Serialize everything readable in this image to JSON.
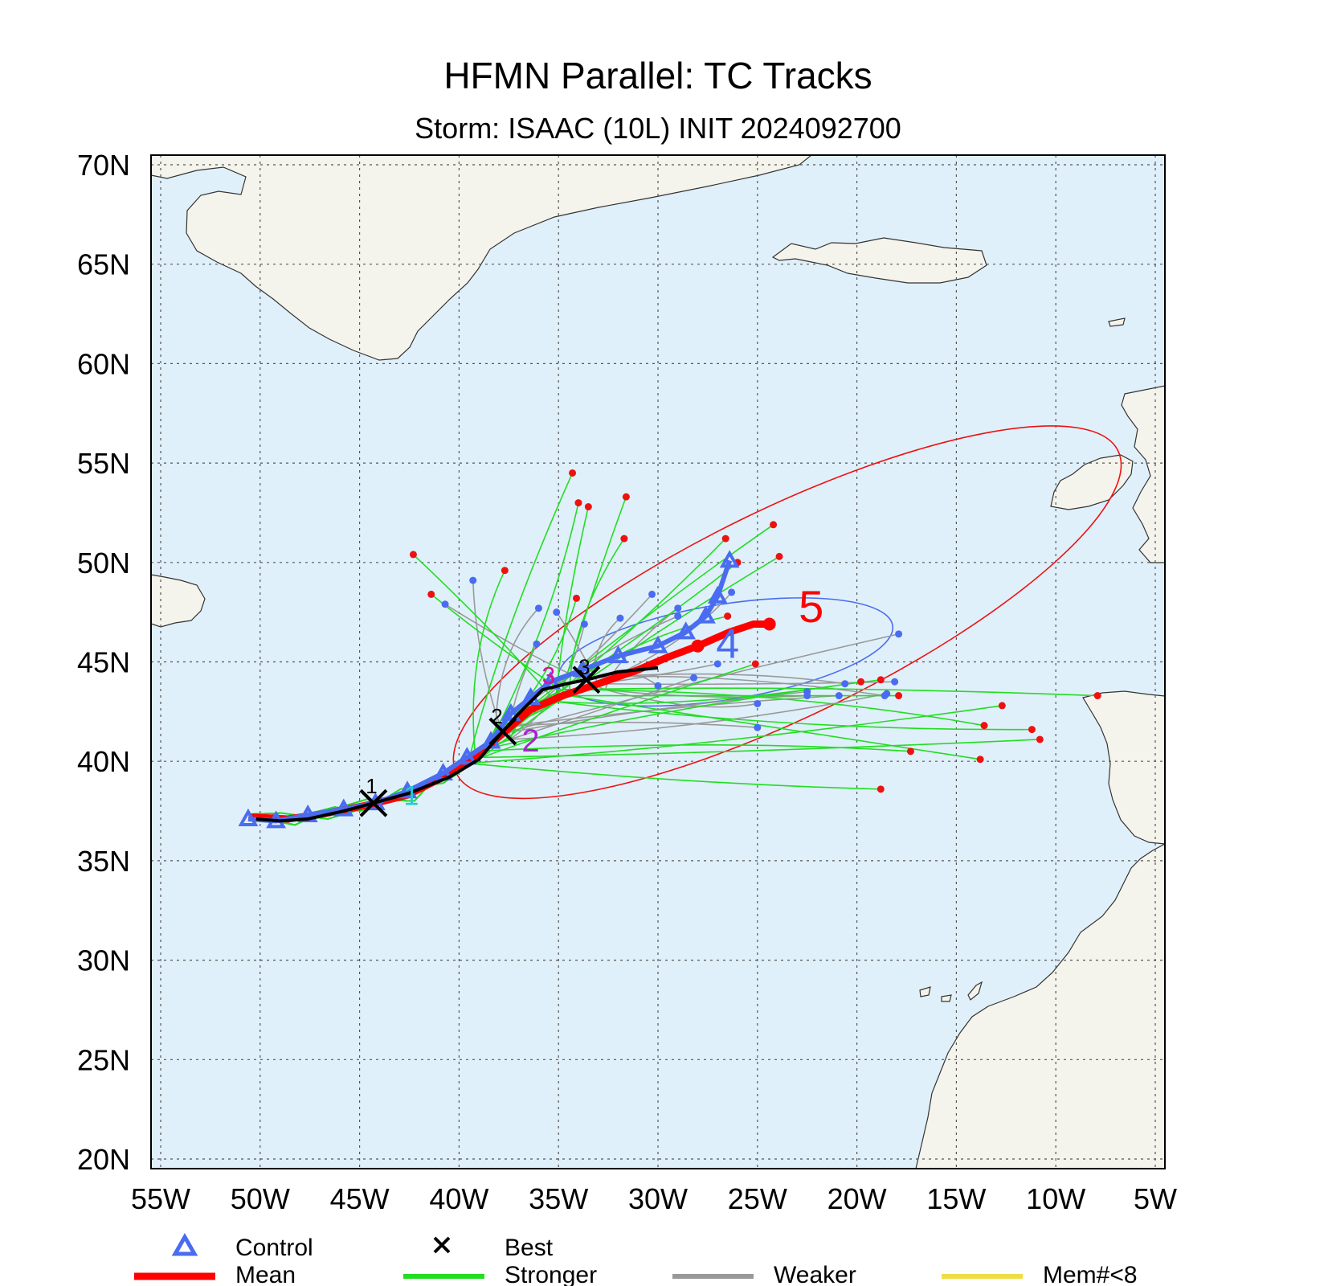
{
  "chart_data": {
    "type": "scatter",
    "title": "HFMN Parallel: TC Tracks",
    "subtitle": "Storm: ISAAC (10L) INIT 2024092700",
    "xlabel": "",
    "ylabel": "",
    "xlim": [
      -55,
      -5
    ],
    "ylim": [
      20,
      70
    ],
    "grid": true,
    "x_ticks": [
      -55,
      -50,
      -45,
      -40,
      -35,
      -30,
      -25,
      -20,
      -15,
      -10,
      -5
    ],
    "x_tick_labels": [
      "55W",
      "50W",
      "45W",
      "40W",
      "35W",
      "30W",
      "25W",
      "20W",
      "15W",
      "10W",
      "5W"
    ],
    "y_ticks": [
      70,
      65,
      60,
      55,
      50,
      45,
      40,
      35,
      30,
      25,
      20
    ],
    "y_tick_labels": [
      "70N",
      "65N",
      "60N",
      "55N",
      "50N",
      "45N",
      "40N",
      "35N",
      "30N",
      "25N",
      "20N"
    ],
    "colors": {
      "ocean": "#e0f0fa",
      "land": "#f4f4ec",
      "control": "#4a6cf0",
      "best": "#000000",
      "mean": "#ff0000",
      "stronger": "#22dd22",
      "weaker": "#999999",
      "member_lt8": "#eedd44",
      "stronger_dot": "#ee1111",
      "weaker_dot": "#4a6cf0",
      "day1_marker": "#22cccc",
      "day2_marker": "#aa22cc",
      "day3_marker": "#dd1199",
      "ellipse_day4": "#4a6cf0",
      "ellipse_day5": "#ee1111"
    },
    "series": [
      {
        "name": "Control",
        "style": "triangle",
        "x": [
          -50.6,
          -49.2,
          -47.6,
          -45.8,
          -44.2,
          -42.6,
          -40.8,
          -39.6,
          -38.4,
          -37.4,
          -36.4,
          -35.4,
          -33.8,
          -32.0,
          -30.0,
          -28.6,
          -27.6,
          -27.0,
          -26.4
        ],
        "y": [
          37.1,
          37.0,
          37.3,
          37.6,
          37.9,
          38.5,
          39.4,
          40.2,
          41.0,
          42.4,
          43.2,
          44.0,
          44.6,
          45.3,
          45.8,
          46.5,
          47.3,
          48.3,
          50.1
        ]
      },
      {
        "name": "Best",
        "style": "x-line",
        "x": [
          -50.2,
          -49.0,
          -47.6,
          -45.8,
          -44.3,
          -42.5,
          -40.5,
          -39.0,
          -37.8,
          -37.0,
          -35.8,
          -34.6,
          -33.6,
          -32.0,
          -30.0
        ],
        "y": [
          37.1,
          37.0,
          37.1,
          37.5,
          37.9,
          38.4,
          39.2,
          40.1,
          41.5,
          42.4,
          43.6,
          43.9,
          44.1,
          44.5,
          44.7
        ]
      },
      {
        "name": "Mean",
        "style": "thick-line",
        "x": [
          -50.4,
          -48.6,
          -46.6,
          -44.6,
          -42.6,
          -40.8,
          -39.2,
          -37.8,
          -36.4,
          -34.8,
          -33.0,
          -31.0,
          -29.6,
          -28.0,
          -26.4,
          -25.2,
          -24.4
        ],
        "y": [
          37.2,
          37.1,
          37.4,
          37.8,
          38.3,
          39.2,
          40.2,
          41.4,
          42.6,
          43.3,
          43.9,
          44.6,
          45.2,
          45.8,
          46.5,
          46.9,
          46.9
        ]
      }
    ],
    "markers": [
      {
        "label": "1",
        "type": "best",
        "x": -44.4,
        "y": 38.4
      },
      {
        "label": "2",
        "type": "best",
        "x": -38.1,
        "y": 41.9
      },
      {
        "label": "3",
        "type": "best",
        "x": -33.7,
        "y": 44.4
      },
      {
        "label": "1",
        "type": "day1",
        "x": -42.4,
        "y": 37.8
      },
      {
        "label": "2",
        "type": "day2",
        "x": -36.4,
        "y": 40.5
      },
      {
        "label": "3",
        "type": "day3",
        "x": -35.5,
        "y": 43.9
      },
      {
        "label": "4",
        "type": "control",
        "x": -26.5,
        "y": 45.2
      },
      {
        "label": "5",
        "type": "mean",
        "x": -22.3,
        "y": 47.0
      }
    ],
    "stronger_endpoints": [
      [
        -34.3,
        54.5
      ],
      [
        -31.6,
        53.3
      ],
      [
        -34.0,
        53.0
      ],
      [
        -33.5,
        52.8
      ],
      [
        -24.2,
        51.9
      ],
      [
        -31.7,
        51.2
      ],
      [
        -26.6,
        51.2
      ],
      [
        -26.0,
        50.0
      ],
      [
        -23.9,
        50.3
      ],
      [
        -42.3,
        50.4
      ],
      [
        -37.7,
        49.6
      ],
      [
        -41.4,
        48.4
      ],
      [
        -34.1,
        48.2
      ],
      [
        -26.5,
        47.3
      ],
      [
        -25.1,
        44.9
      ],
      [
        -19.8,
        44.0
      ],
      [
        -18.8,
        44.1
      ],
      [
        -17.9,
        43.3
      ],
      [
        -12.7,
        42.8
      ],
      [
        -13.6,
        41.8
      ],
      [
        -10.8,
        41.1
      ],
      [
        -11.2,
        41.6
      ],
      [
        -17.3,
        40.5
      ],
      [
        -13.8,
        40.1
      ],
      [
        -18.8,
        38.6
      ],
      [
        -7.9,
        43.3
      ]
    ],
    "weaker_endpoints": [
      [
        -39.3,
        49.1
      ],
      [
        -40.7,
        47.9
      ],
      [
        -36.0,
        47.7
      ],
      [
        -35.1,
        47.5
      ],
      [
        -33.7,
        46.9
      ],
      [
        -31.9,
        47.2
      ],
      [
        -30.3,
        48.4
      ],
      [
        -29.0,
        47.7
      ],
      [
        -29.0,
        47.3
      ],
      [
        -26.3,
        48.5
      ],
      [
        -36.1,
        45.9
      ],
      [
        -20.6,
        43.9
      ],
      [
        -22.5,
        43.5
      ],
      [
        -22.5,
        43.3
      ],
      [
        -20.9,
        43.3
      ],
      [
        -18.1,
        44.0
      ],
      [
        -18.5,
        43.4
      ],
      [
        -18.6,
        43.3
      ],
      [
        -17.9,
        46.4
      ],
      [
        -25.0,
        42.9
      ],
      [
        -25.0,
        41.7
      ],
      [
        -27.0,
        44.9
      ],
      [
        -28.2,
        44.2
      ],
      [
        -30.0,
        43.8
      ]
    ],
    "ellipses": [
      {
        "name": "day4",
        "cx": -26.6,
        "cy": 45.5,
        "rx": 8.5,
        "ry": 2.4,
        "angle_deg": -9
      },
      {
        "name": "day5",
        "cx": -23.5,
        "cy": 47.5,
        "rx": 18.5,
        "ry": 5.2,
        "angle_deg": -26
      }
    ]
  },
  "legend": {
    "control": "Control",
    "best": "Best",
    "mean": "Mean",
    "stronger": "Stronger",
    "weaker": "Weaker",
    "mem": "Mem#<8"
  }
}
